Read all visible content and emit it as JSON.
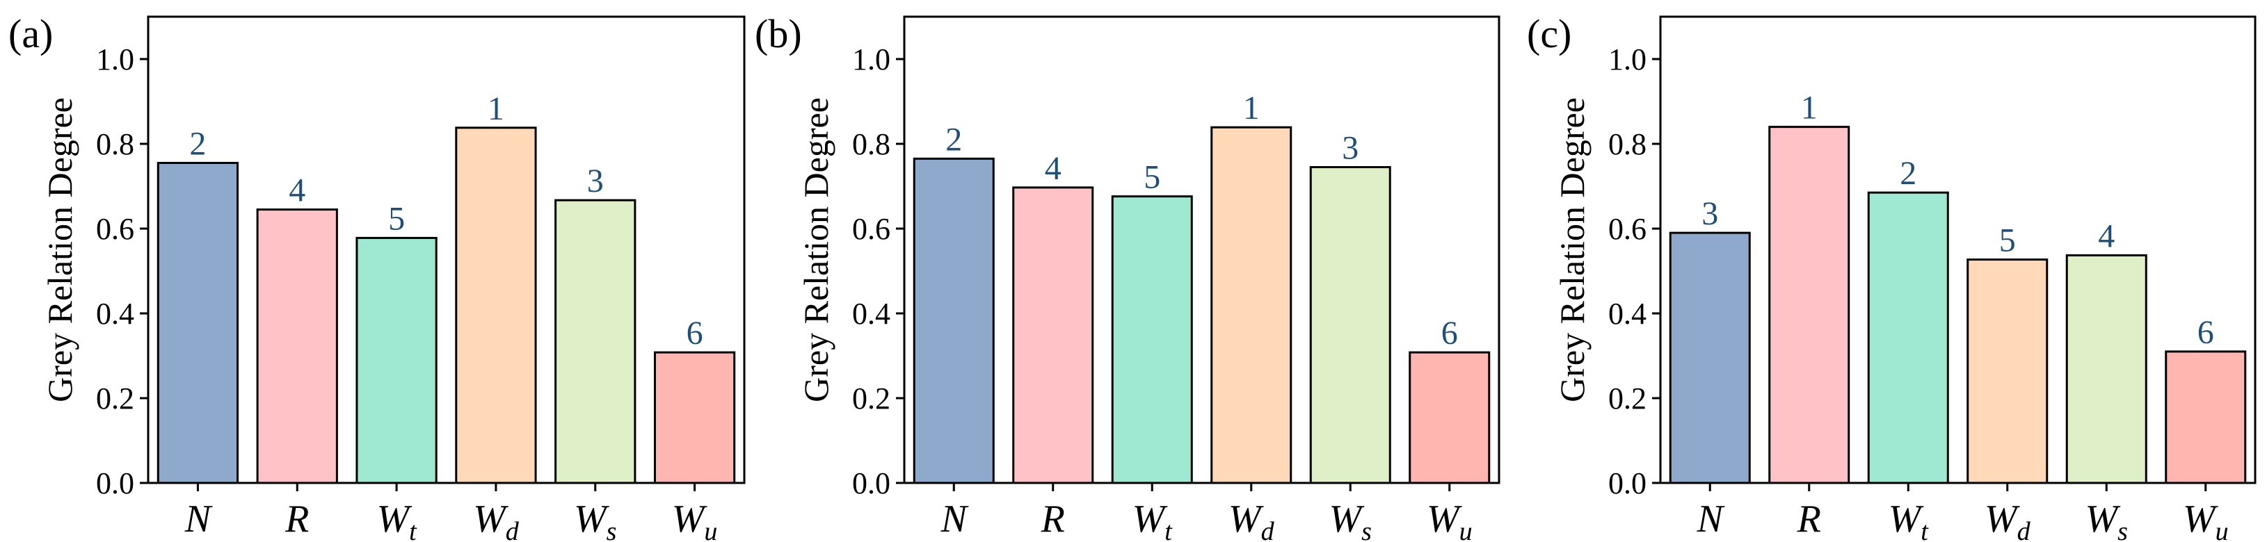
{
  "colors": {
    "bars": [
      "#8ea9cb",
      "#ffc2c6",
      "#9fe9d3",
      "#ffd9b8",
      "#dff0c9",
      "#ffb5b0"
    ],
    "rank_label": "#1f4e79",
    "bar_edge": "#000000"
  },
  "chart_data": [
    {
      "type": "bar",
      "panel_label": "(a)",
      "ylabel": "Grey Relation Degree",
      "categories": [
        {
          "main": "N",
          "sub": ""
        },
        {
          "main": "R",
          "sub": ""
        },
        {
          "main": "W",
          "sub": "t"
        },
        {
          "main": "W",
          "sub": "d"
        },
        {
          "main": "W",
          "sub": "s"
        },
        {
          "main": "W",
          "sub": "u"
        }
      ],
      "values": [
        0.755,
        0.645,
        0.578,
        0.838,
        0.667,
        0.308
      ],
      "bar_labels": [
        "2",
        "4",
        "5",
        "1",
        "3",
        "6"
      ],
      "ylim": [
        0,
        1.1
      ],
      "yticks": [
        "0.0",
        "0.2",
        "0.4",
        "0.6",
        "0.8",
        "1.0"
      ],
      "grid": false
    },
    {
      "type": "bar",
      "panel_label": "(b)",
      "ylabel": "Grey Relation Degree",
      "categories": [
        {
          "main": "N",
          "sub": ""
        },
        {
          "main": "R",
          "sub": ""
        },
        {
          "main": "W",
          "sub": "t"
        },
        {
          "main": "W",
          "sub": "d"
        },
        {
          "main": "W",
          "sub": "s"
        },
        {
          "main": "W",
          "sub": "u"
        }
      ],
      "values": [
        0.765,
        0.697,
        0.676,
        0.839,
        0.745,
        0.308
      ],
      "bar_labels": [
        "2",
        "4",
        "5",
        "1",
        "3",
        "6"
      ],
      "ylim": [
        0,
        1.1
      ],
      "yticks": [
        "0.0",
        "0.2",
        "0.4",
        "0.6",
        "0.8",
        "1.0"
      ],
      "grid": false
    },
    {
      "type": "bar",
      "panel_label": "(c)",
      "ylabel": "Grey Relation Degree",
      "categories": [
        {
          "main": "N",
          "sub": ""
        },
        {
          "main": "R",
          "sub": ""
        },
        {
          "main": "W",
          "sub": "t"
        },
        {
          "main": "W",
          "sub": "d"
        },
        {
          "main": "W",
          "sub": "s"
        },
        {
          "main": "W",
          "sub": "u"
        }
      ],
      "values": [
        0.59,
        0.84,
        0.685,
        0.527,
        0.537,
        0.31
      ],
      "bar_labels": [
        "3",
        "1",
        "2",
        "5",
        "4",
        "6"
      ],
      "ylim": [
        0,
        1.1
      ],
      "yticks": [
        "0.0",
        "0.2",
        "0.4",
        "0.6",
        "0.8",
        "1.0"
      ],
      "grid": false
    }
  ]
}
